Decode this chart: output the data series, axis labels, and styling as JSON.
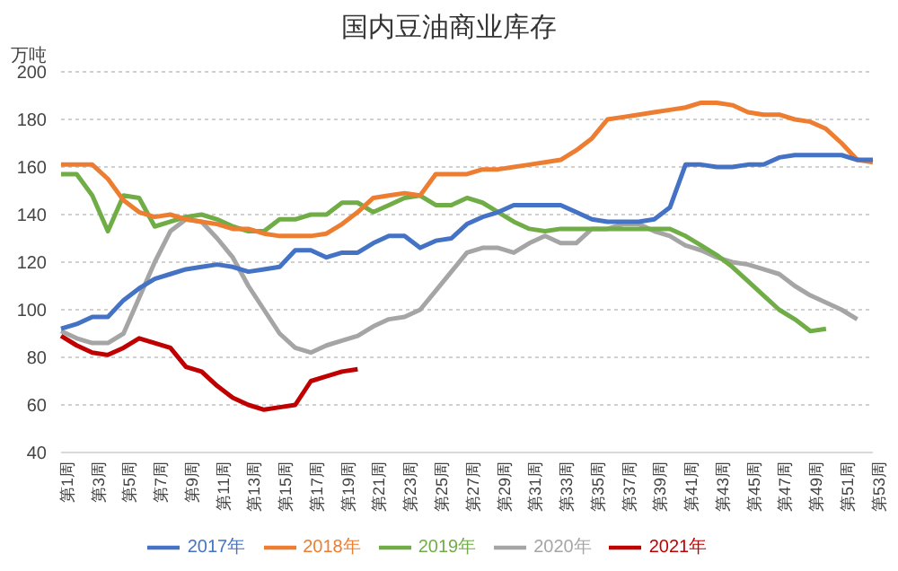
{
  "chart_data": {
    "type": "line",
    "title": "国内豆油商业库存",
    "ylabel": "万吨",
    "categories": [
      "第1周",
      null,
      "第3周",
      null,
      "第5周",
      null,
      "第7周",
      null,
      "第9周",
      null,
      "第11周",
      null,
      "第13周",
      null,
      "第15周",
      null,
      "第17周",
      null,
      "第19周",
      null,
      "第21周",
      null,
      "第23周",
      null,
      "第25周",
      null,
      "第27周",
      null,
      "第29周",
      null,
      "第31周",
      null,
      "第33周",
      null,
      "第35周",
      null,
      "第37周",
      null,
      "第39周",
      null,
      "第41周",
      null,
      "第43周",
      null,
      "第45周",
      null,
      "第47周",
      null,
      "第49周",
      null,
      "第51周",
      null,
      "第53周"
    ],
    "series": [
      {
        "name": "2021年",
        "color": "#c00000",
        "values": [
          89,
          85,
          82,
          81,
          84,
          88,
          86,
          84,
          76,
          74,
          68,
          63,
          60,
          58,
          59,
          60,
          70,
          72,
          74,
          75,
          null,
          null,
          null,
          null,
          null,
          null,
          null,
          null,
          null,
          null,
          null,
          null,
          null,
          null,
          null,
          null,
          null,
          null,
          null,
          null,
          null,
          null,
          null,
          null,
          null,
          null,
          null,
          null,
          null,
          null,
          null,
          null,
          null
        ]
      },
      {
        "name": "2020年",
        "color": "#a5a5a5",
        "values": [
          91,
          88,
          86,
          86,
          90,
          105,
          120,
          133,
          138,
          137,
          130,
          122,
          110,
          100,
          90,
          84,
          82,
          85,
          87,
          89,
          93,
          96,
          97,
          100,
          108,
          116,
          124,
          126,
          126,
          124,
          128,
          131,
          128,
          128,
          134,
          134,
          136,
          136,
          133,
          131,
          127,
          125,
          122,
          120,
          119,
          117,
          115,
          110,
          106,
          103,
          100,
          96,
          null
        ]
      },
      {
        "name": "2019年",
        "color": "#70ad47",
        "values": [
          157,
          157,
          148,
          133,
          148,
          147,
          135,
          137,
          139,
          140,
          138,
          135,
          133,
          133,
          138,
          138,
          140,
          140,
          145,
          145,
          141,
          144,
          147,
          148,
          144,
          144,
          147,
          145,
          141,
          137,
          134,
          133,
          134,
          134,
          134,
          134,
          134,
          134,
          134,
          134,
          131,
          127,
          123,
          118,
          112,
          106,
          100,
          96,
          91,
          92,
          null,
          null,
          null
        ]
      },
      {
        "name": "2018年",
        "color": "#ed7d31",
        "values": [
          161,
          161,
          161,
          155,
          146,
          141,
          139,
          140,
          138,
          137,
          136,
          134,
          134,
          132,
          131,
          131,
          131,
          132,
          136,
          141,
          147,
          148,
          149,
          148,
          157,
          157,
          157,
          159,
          159,
          160,
          161,
          162,
          163,
          167,
          172,
          180,
          181,
          182,
          183,
          184,
          185,
          187,
          187,
          186,
          183,
          182,
          182,
          180,
          179,
          176,
          170,
          163,
          162
        ]
      },
      {
        "name": "2017年",
        "color": "#4472c4",
        "values": [
          92,
          94,
          97,
          97,
          104,
          109,
          113,
          115,
          117,
          118,
          119,
          118,
          116,
          117,
          118,
          125,
          125,
          122,
          124,
          124,
          128,
          131,
          131,
          126,
          129,
          130,
          136,
          139,
          141,
          144,
          144,
          144,
          144,
          141,
          138,
          137,
          137,
          137,
          138,
          143,
          161,
          161,
          160,
          160,
          161,
          161,
          164,
          165,
          165,
          165,
          165,
          163,
          163
        ]
      }
    ],
    "ylim": [
      40,
      200
    ],
    "yticks": [
      40,
      60,
      80,
      100,
      120,
      140,
      160,
      180,
      200
    ],
    "grid": "y",
    "legend": "bottom",
    "marker": "none",
    "line_style": "solid"
  }
}
